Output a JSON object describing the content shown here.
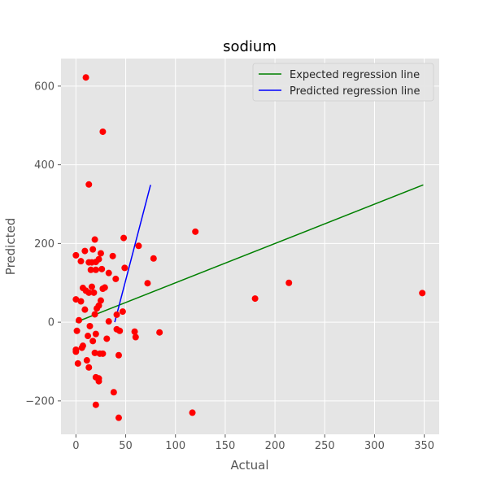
{
  "chart_data": {
    "type": "scatter",
    "title": "sodium",
    "xlabel": "Actual",
    "ylabel": "Predicted",
    "xlim": [
      -15,
      365
    ],
    "ylim": [
      -285,
      670
    ],
    "xticks": [
      0,
      50,
      100,
      150,
      200,
      250,
      300,
      350
    ],
    "yticks": [
      -200,
      0,
      200,
      400,
      600
    ],
    "grid": true,
    "legend_position": "top-right",
    "colors": {
      "plot_bg": "#e5e5e5",
      "grid": "#ffffff",
      "points": "#ff0000",
      "expected_line": "#008000",
      "predicted_line": "#0000ff",
      "text": "#555555",
      "title": "#000000"
    },
    "lines": [
      {
        "name": "Expected regression line",
        "color": "#008000",
        "points": [
          [
            0,
            0
          ],
          [
            349,
            349
          ]
        ]
      },
      {
        "name": "Predicted regression line",
        "color": "#0000ff",
        "points": [
          [
            39,
            0
          ],
          [
            75,
            349
          ]
        ]
      }
    ],
    "points": [
      [
        10,
        622
      ],
      [
        27,
        484
      ],
      [
        13,
        350
      ],
      [
        120,
        230
      ],
      [
        48,
        214
      ],
      [
        19,
        210
      ],
      [
        63,
        194
      ],
      [
        9,
        181
      ],
      [
        17,
        185
      ],
      [
        25,
        175
      ],
      [
        0,
        170
      ],
      [
        78,
        162
      ],
      [
        23,
        160
      ],
      [
        5,
        155
      ],
      [
        13,
        152
      ],
      [
        20,
        153
      ],
      [
        16,
        152
      ],
      [
        37,
        168
      ],
      [
        26,
        135
      ],
      [
        49,
        138
      ],
      [
        15,
        133
      ],
      [
        20,
        133
      ],
      [
        33,
        125
      ],
      [
        40,
        110
      ],
      [
        72,
        99
      ],
      [
        214,
        100
      ],
      [
        7,
        87
      ],
      [
        16,
        90
      ],
      [
        27,
        85
      ],
      [
        29,
        88
      ],
      [
        10,
        80
      ],
      [
        13,
        75
      ],
      [
        18,
        75
      ],
      [
        348,
        74
      ],
      [
        180,
        60
      ],
      [
        0,
        58
      ],
      [
        25,
        55
      ],
      [
        5,
        53
      ],
      [
        23,
        42
      ],
      [
        9,
        32
      ],
      [
        21,
        35
      ],
      [
        47,
        27
      ],
      [
        19,
        20
      ],
      [
        41,
        19
      ],
      [
        3,
        5
      ],
      [
        33,
        2
      ],
      [
        14,
        -10
      ],
      [
        41,
        -18
      ],
      [
        44,
        -22
      ],
      [
        59,
        -24
      ],
      [
        84,
        -26
      ],
      [
        1,
        -22
      ],
      [
        20,
        -30
      ],
      [
        12,
        -35
      ],
      [
        60,
        -38
      ],
      [
        31,
        -42
      ],
      [
        17,
        -48
      ],
      [
        7,
        -60
      ],
      [
        6,
        -65
      ],
      [
        0,
        -70
      ],
      [
        0,
        -75
      ],
      [
        19,
        -78
      ],
      [
        24,
        -80
      ],
      [
        27,
        -80
      ],
      [
        43,
        -84
      ],
      [
        11,
        -97
      ],
      [
        2,
        -105
      ],
      [
        13,
        -115
      ],
      [
        20,
        -140
      ],
      [
        23,
        -143
      ],
      [
        23,
        -150
      ],
      [
        38,
        -178
      ],
      [
        20,
        -210
      ],
      [
        117,
        -230
      ],
      [
        43,
        -243
      ]
    ]
  }
}
